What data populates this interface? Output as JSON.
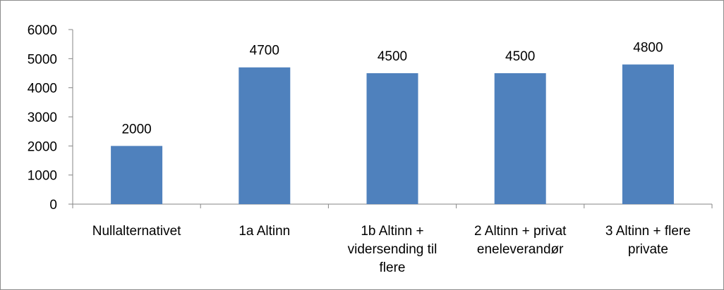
{
  "chart_data": {
    "type": "bar",
    "categories": [
      [
        "Nullalternativet"
      ],
      [
        "1a Altinn"
      ],
      [
        "1b Altinn +",
        "vidersending til",
        "flere"
      ],
      [
        "2 Altinn + privat",
        "eneleverandør"
      ],
      [
        "3 Altinn + flere",
        "private"
      ]
    ],
    "values": [
      2000,
      4700,
      4500,
      4500,
      4800
    ],
    "data_labels": [
      "2000",
      "4700",
      "4500",
      "4500",
      "4800"
    ],
    "yticks": [
      "0",
      "1000",
      "2000",
      "3000",
      "4000",
      "5000",
      "6000"
    ],
    "ylim": [
      0,
      6000
    ],
    "title": "",
    "xlabel": "",
    "ylabel": "",
    "grid": false,
    "legend": "none",
    "colors": {
      "bar": "#4f81bd",
      "axis": "#868686",
      "frame": "#8c8c8c"
    }
  }
}
